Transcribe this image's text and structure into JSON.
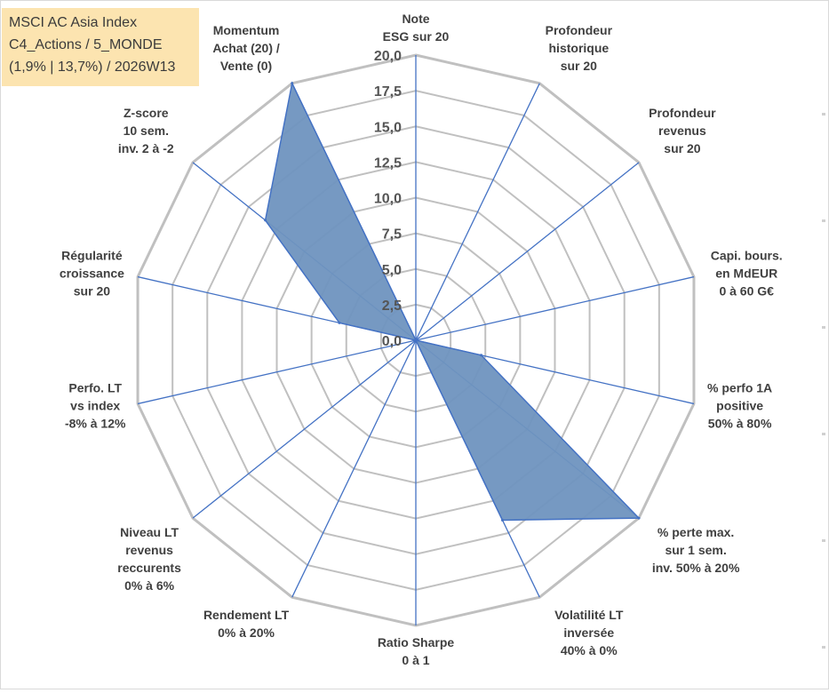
{
  "header": {
    "line1": "MSCI AC Asia Index",
    "line2": "C4_Actions / 5_MONDE",
    "line3": "(1,9% | 13,7%) / 2026W13"
  },
  "colors": {
    "fill": "#6f93bf",
    "line": "#4472c4",
    "grid": "#c0c0c0",
    "header_bg": "#fce4b0"
  },
  "chart_data": {
    "type": "radar",
    "title": "MSCI AC Asia Index",
    "rlim": [
      0,
      20
    ],
    "grid": true,
    "tick_labels": [
      "0,0",
      "2,5",
      "5,0",
      "7,5",
      "10,0",
      "12,5",
      "15,0",
      "17,5",
      "20,0"
    ],
    "categories": [
      "Note ESG sur 20",
      "Profondeur historique sur 20",
      "Profondeur revenus sur 20",
      "Capi. bours. en MdEUR 0 à 60 G€",
      "% perfo 1A positive 50% à 80%",
      "% perte max. sur 1 sem. inv. 50% à 20%",
      "Volatilité LT inversée 40% à 0%",
      "Ratio Sharpe 0 à 1",
      "Rendement LT 0% à 20%",
      "Niveau LT revenus reccurents 0% à 6%",
      "Perfo. LT vs index -8% à 12%",
      "Régularité croissance sur 20",
      "Z-score 10 sem. inv. 2 à -2",
      "Momentum Achat (20) / Vente (0)"
    ],
    "category_lines": [
      [
        "Note",
        "ESG sur 20"
      ],
      [
        "Profondeur",
        "historique",
        "sur 20"
      ],
      [
        "Profondeur",
        "revenus",
        "sur 20"
      ],
      [
        "Capi. bours.",
        "en MdEUR",
        "0 à 60 G€"
      ],
      [
        "% perfo 1A",
        "positive",
        "50% à 80%"
      ],
      [
        "% perte max.",
        "sur 1 sem.",
        "inv. 50% à 20%"
      ],
      [
        "Volatilité LT",
        "inversée",
        "40% à 0%"
      ],
      [
        "Ratio Sharpe",
        "0 à 1"
      ],
      [
        "Rendement LT",
        "0% à 20%"
      ],
      [
        "Niveau LT",
        "revenus",
        "reccurents",
        "0% à 6%"
      ],
      [
        "Perfo. LT",
        "vs index",
        "-8% à 12%"
      ],
      [
        "Régularité",
        "croissance",
        "sur 20"
      ],
      [
        "Z-score",
        "10 sem.",
        "inv. 2 à -2"
      ],
      [
        "Momentum",
        "Achat (20) /",
        "Vente (0)"
      ]
    ],
    "series": [
      {
        "name": "MSCI AC Asia Index",
        "values": [
          0,
          0,
          0,
          0,
          4.7,
          20,
          14,
          0,
          0,
          0,
          0,
          5.5,
          13.5,
          20
        ]
      }
    ]
  }
}
